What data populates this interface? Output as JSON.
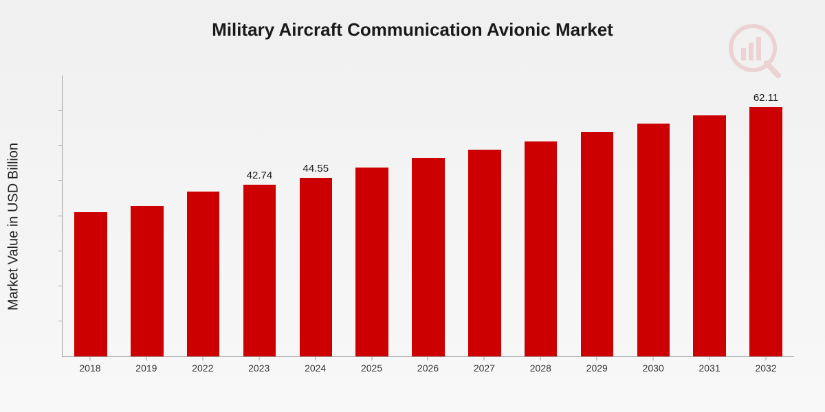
{
  "title": "Military Aircraft Communication Avionic Market",
  "ylabel": "Market Value in USD Billion",
  "chart": {
    "type": "bar",
    "bar_color": "#cc0000",
    "background": "#f2f2f2",
    "axis_color": "#a0a0a0",
    "title_fontsize": 26,
    "ylabel_fontsize": 20,
    "xlabel_fontsize": 14,
    "data_label_fontsize": 15,
    "bar_width_ratio": 0.58,
    "ylim": [
      0,
      70
    ],
    "ytick_count": 8,
    "categories": [
      "2018",
      "2019",
      "2022",
      "2023",
      "2024",
      "2025",
      "2026",
      "2027",
      "2028",
      "2029",
      "2030",
      "2031",
      "2032"
    ],
    "values": [
      36.0,
      37.5,
      41.0,
      42.74,
      44.55,
      47.0,
      49.5,
      51.5,
      53.5,
      56.0,
      58.0,
      60.0,
      62.11
    ],
    "data_labels": [
      "",
      "",
      "",
      "42.74",
      "44.55",
      "",
      "",
      "",
      "",
      "",
      "",
      "",
      "62.11"
    ]
  },
  "logo": {
    "color": "#cc0000",
    "opacity": 0.12
  }
}
